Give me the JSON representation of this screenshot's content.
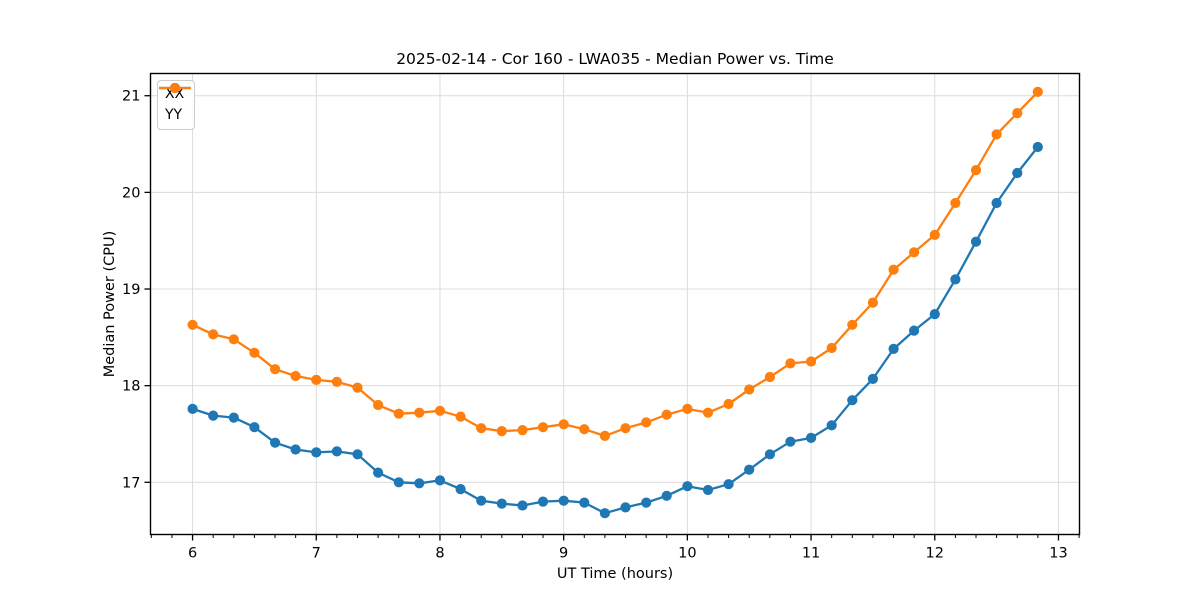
{
  "chart_data": {
    "type": "line",
    "title": "2025-02-14 - Cor 160 - LWA035 - Median Power vs. Time",
    "xlabel": "UT Time (hours)",
    "ylabel": "Median Power (CPU)",
    "xlim": [
      5.66,
      13.17
    ],
    "ylim": [
      16.46,
      21.23
    ],
    "x_ticks": [
      6,
      7,
      8,
      9,
      10,
      11,
      12,
      13
    ],
    "x_tick_labels": [
      "6",
      "7",
      "8",
      "9",
      "10",
      "11",
      "12",
      "13"
    ],
    "x_minor_tick_step_hours": 0.1667,
    "y_ticks": [
      17,
      18,
      19,
      20,
      21
    ],
    "y_tick_labels": [
      "17",
      "18",
      "19",
      "20",
      "21"
    ],
    "grid": true,
    "legend_position": "upper-left",
    "legend_entries": [
      "XX",
      "YY"
    ],
    "colors": {
      "XX": "#1f77b4",
      "YY": "#ff7f0e",
      "grid": "#dcdcdc",
      "spine": "#000000"
    },
    "x": [
      6.0,
      6.167,
      6.333,
      6.5,
      6.667,
      6.833,
      7.0,
      7.167,
      7.333,
      7.5,
      7.667,
      7.833,
      8.0,
      8.167,
      8.333,
      8.5,
      8.667,
      8.833,
      9.0,
      9.167,
      9.333,
      9.5,
      9.667,
      9.833,
      10.0,
      10.167,
      10.333,
      10.5,
      10.667,
      10.833,
      11.0,
      11.167,
      11.333,
      11.5,
      11.667,
      11.833,
      12.0,
      12.167,
      12.333,
      12.5,
      12.667,
      12.833
    ],
    "series": [
      {
        "name": "XX",
        "color": "#1f77b4",
        "values": [
          17.76,
          17.69,
          17.67,
          17.57,
          17.41,
          17.34,
          17.31,
          17.32,
          17.29,
          17.1,
          17.0,
          16.99,
          17.02,
          16.93,
          16.81,
          16.78,
          16.76,
          16.8,
          16.81,
          16.79,
          16.68,
          16.74,
          16.79,
          16.86,
          16.96,
          16.92,
          16.98,
          17.13,
          17.29,
          17.42,
          17.46,
          17.59,
          17.85,
          18.07,
          18.38,
          18.57,
          18.74,
          19.1,
          19.49,
          19.89,
          20.2,
          20.47
        ]
      },
      {
        "name": "YY",
        "color": "#ff7f0e",
        "values": [
          18.63,
          18.53,
          18.48,
          18.34,
          18.17,
          18.1,
          18.06,
          18.04,
          17.98,
          17.8,
          17.71,
          17.72,
          17.74,
          17.68,
          17.56,
          17.53,
          17.54,
          17.57,
          17.6,
          17.55,
          17.48,
          17.56,
          17.62,
          17.7,
          17.76,
          17.72,
          17.81,
          17.96,
          18.09,
          18.23,
          18.25,
          18.39,
          18.63,
          18.86,
          19.2,
          19.38,
          19.56,
          19.89,
          20.23,
          20.6,
          20.82,
          21.04
        ]
      }
    ]
  }
}
